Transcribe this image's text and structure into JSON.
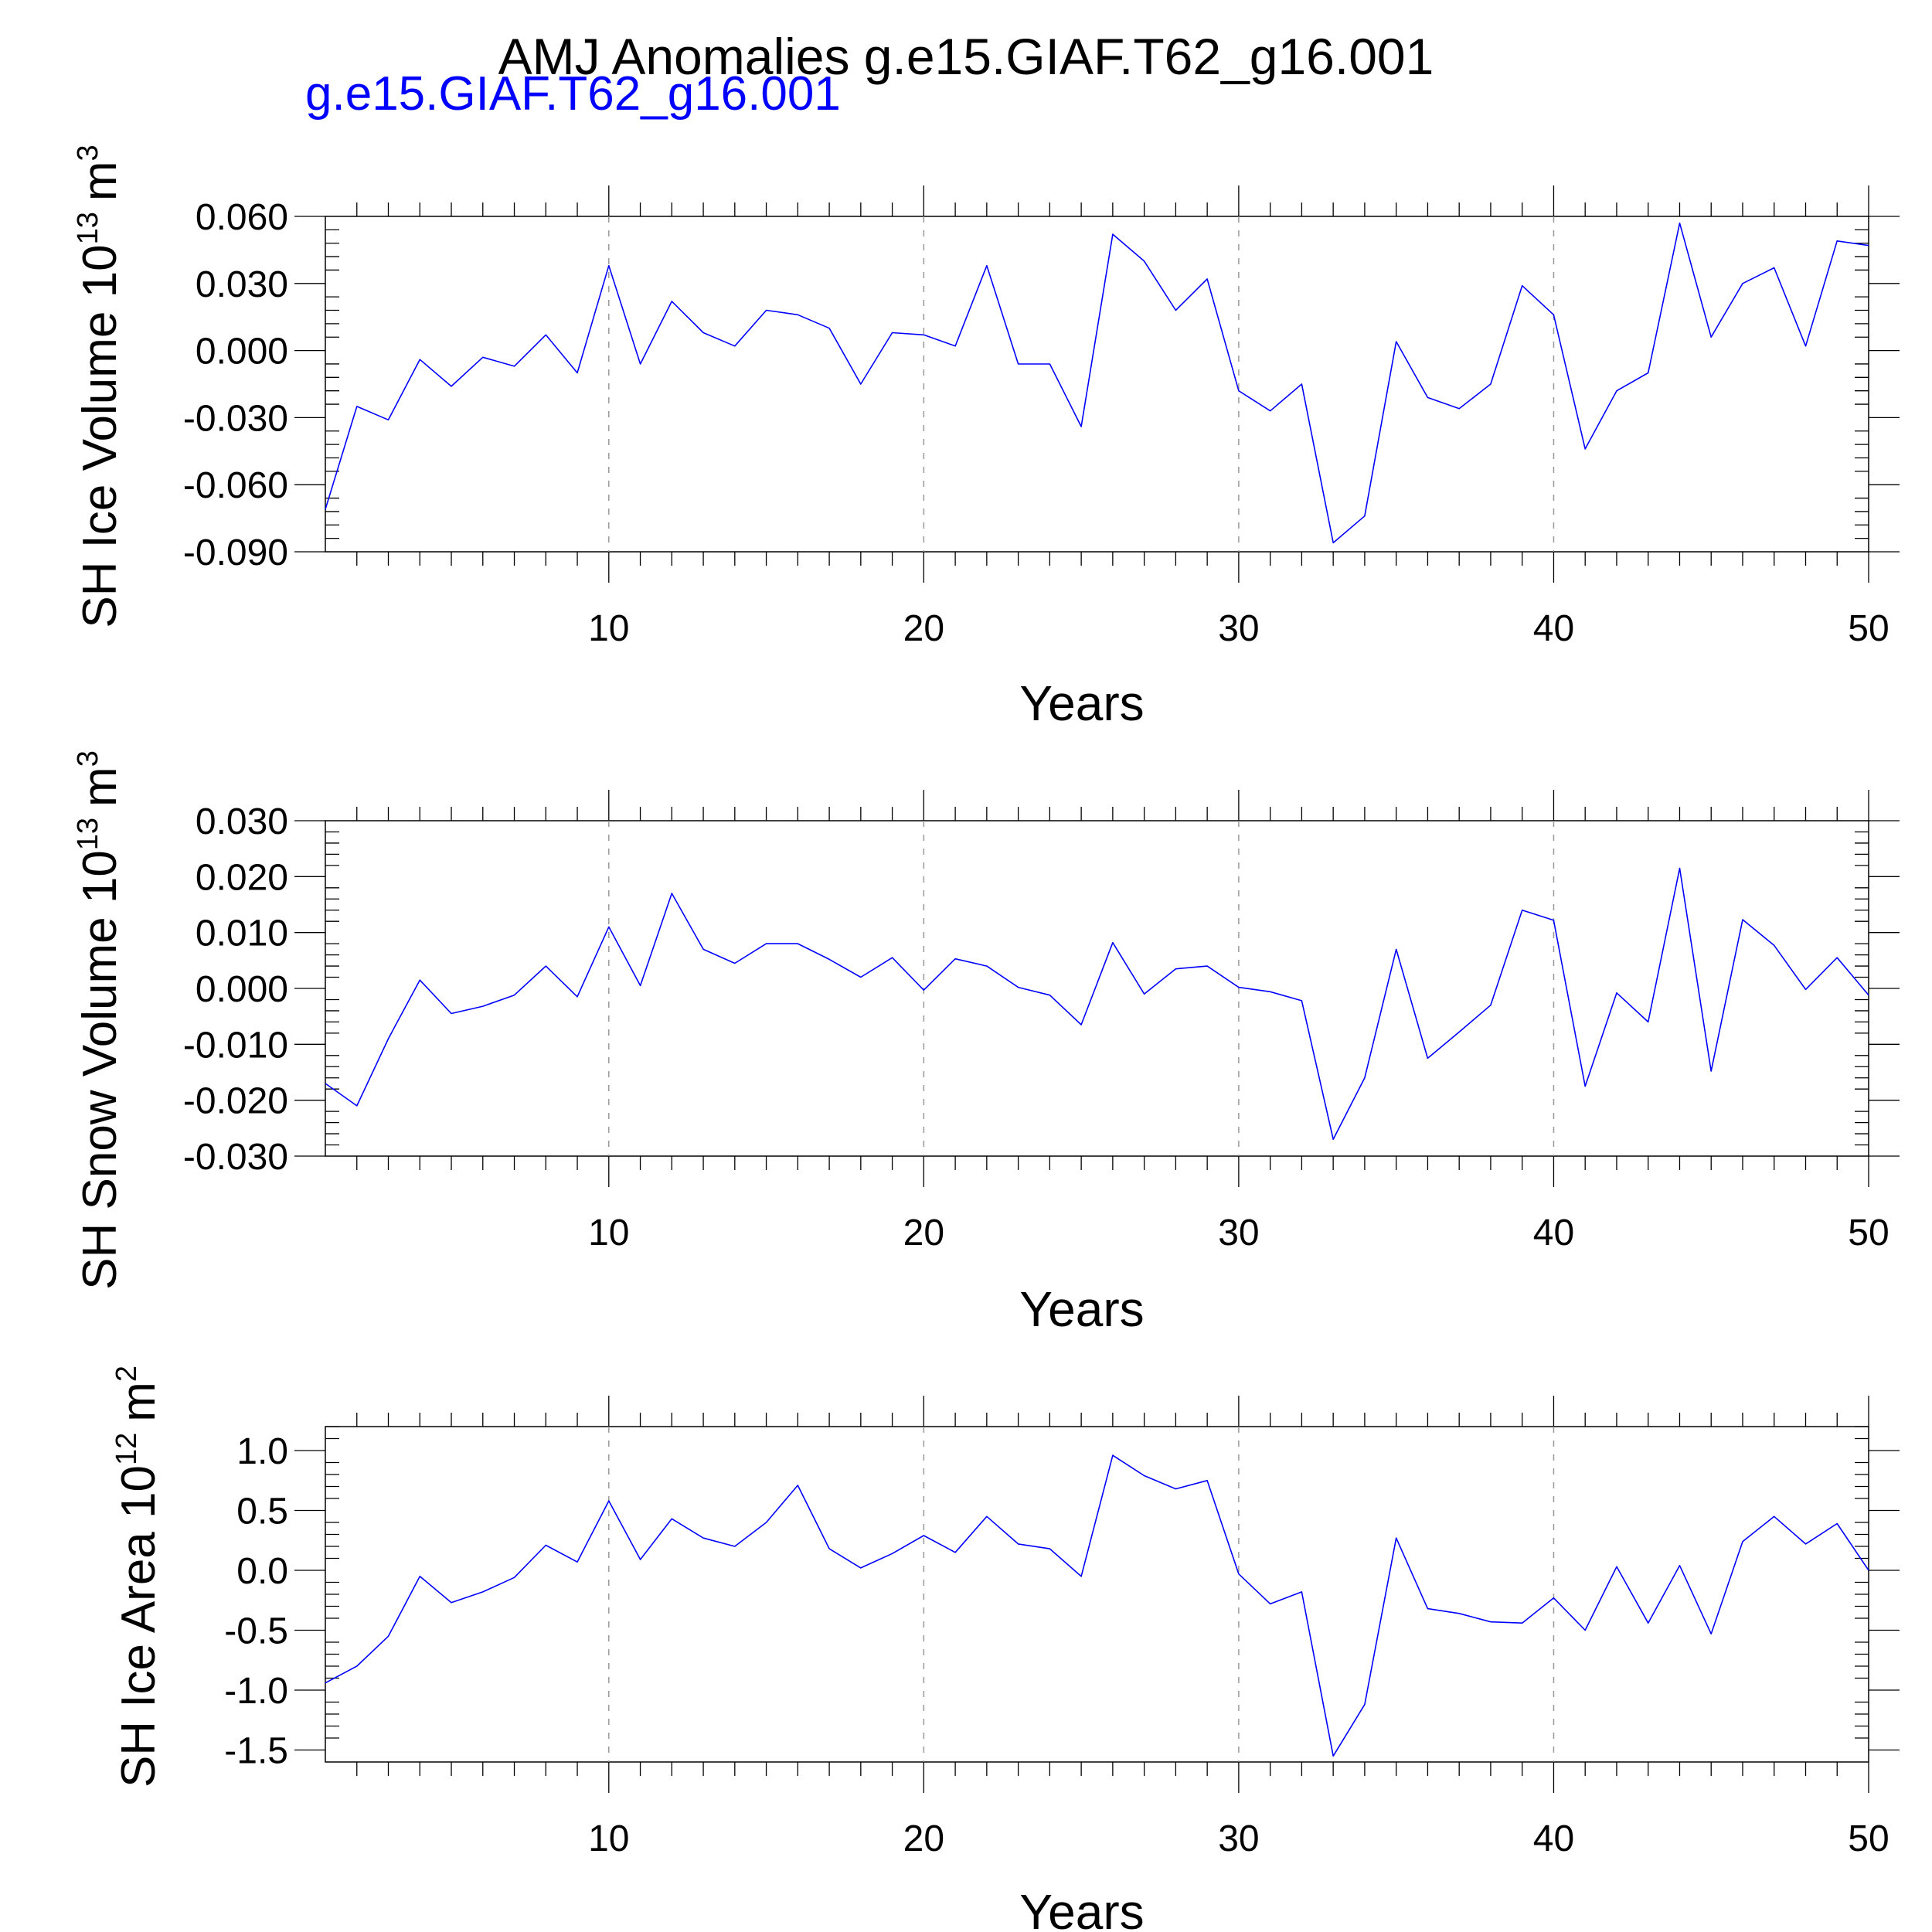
{
  "title": "AMJ Anomalies g.e15.GIAF.T62_g16.001",
  "subtitle": "g.e15.GIAF.T62_g16.001",
  "subtitle_color": "#0000ff",
  "chart_data": [
    {
      "type": "line",
      "xlabel": "Years",
      "ylabel": "SH Ice Volume 10",
      "ylabel_exponent": "13",
      "ylabel_unit": "m",
      "ylabel_unit_power": "3",
      "xlim": [
        1,
        50
      ],
      "ylim": [
        -0.09,
        0.06
      ],
      "x_major_ticks": [
        10,
        20,
        30,
        40,
        50
      ],
      "x_tick_labels": [
        "10",
        "20",
        "30",
        "40",
        "50"
      ],
      "y_major_ticks": [
        -0.09,
        -0.06,
        -0.03,
        0.0,
        0.03,
        0.06
      ],
      "y_tick_labels": [
        "-0.090",
        "-0.060",
        "-0.030",
        "0.000",
        "0.030",
        "0.060"
      ],
      "grid": "vertical dashed at major x ticks",
      "series": [
        {
          "color": "#0000ff",
          "x": [
            1,
            2,
            3,
            4,
            5,
            6,
            7,
            8,
            9,
            10,
            11,
            12,
            13,
            14,
            15,
            16,
            17,
            18,
            19,
            20,
            21,
            22,
            23,
            24,
            25,
            26,
            27,
            28,
            29,
            30,
            31,
            32,
            33,
            34,
            35,
            36,
            37,
            38,
            39,
            40,
            41,
            42,
            43,
            44,
            45,
            46,
            47,
            48,
            49,
            50
          ],
          "values": [
            -0.071,
            -0.025,
            -0.031,
            -0.004,
            -0.016,
            -0.003,
            -0.007,
            0.007,
            -0.01,
            0.038,
            -0.006,
            0.022,
            0.008,
            0.002,
            0.018,
            0.016,
            0.01,
            -0.015,
            0.008,
            0.007,
            0.002,
            0.038,
            -0.006,
            -0.006,
            -0.034,
            0.052,
            0.04,
            0.018,
            0.032,
            -0.018,
            -0.027,
            -0.015,
            -0.086,
            -0.074,
            0.004,
            -0.021,
            -0.026,
            -0.015,
            0.029,
            0.016,
            -0.044,
            -0.018,
            -0.01,
            0.057,
            0.006,
            0.03,
            0.037,
            0.002,
            0.049,
            0.047
          ]
        }
      ]
    },
    {
      "type": "line",
      "xlabel": "Years",
      "ylabel": "SH Snow Volume 10",
      "ylabel_exponent": "13",
      "ylabel_unit": "m",
      "ylabel_unit_power": "3",
      "xlim": [
        1,
        50
      ],
      "ylim": [
        -0.03,
        0.03
      ],
      "x_major_ticks": [
        10,
        20,
        30,
        40,
        50
      ],
      "x_tick_labels": [
        "10",
        "20",
        "30",
        "40",
        "50"
      ],
      "y_major_ticks": [
        -0.03,
        -0.02,
        -0.01,
        0.0,
        0.01,
        0.02,
        0.03
      ],
      "y_tick_labels": [
        "-0.030",
        "-0.020",
        "-0.010",
        "0.000",
        "0.010",
        "0.020",
        "0.030"
      ],
      "grid": "vertical dashed at major x ticks",
      "series": [
        {
          "color": "#0000ff",
          "x": [
            1,
            2,
            3,
            4,
            5,
            6,
            7,
            8,
            9,
            10,
            11,
            12,
            13,
            14,
            15,
            16,
            17,
            18,
            19,
            20,
            21,
            22,
            23,
            24,
            25,
            26,
            27,
            28,
            29,
            30,
            31,
            32,
            33,
            34,
            35,
            36,
            37,
            38,
            39,
            40,
            41,
            42,
            43,
            44,
            45,
            46,
            47,
            48,
            49,
            50
          ],
          "values": [
            -0.017,
            -0.021,
            -0.009,
            0.0015,
            -0.0045,
            -0.0032,
            -0.0012,
            0.004,
            -0.0015,
            0.011,
            0.0005,
            0.017,
            0.007,
            0.0045,
            0.008,
            0.008,
            0.0052,
            0.002,
            0.0055,
            -0.0003,
            0.0053,
            0.004,
            0.0002,
            -0.0012,
            -0.0065,
            0.0082,
            -0.001,
            0.0035,
            0.004,
            0.0002,
            -0.0006,
            -0.0022,
            -0.027,
            -0.016,
            0.007,
            -0.0125,
            -0.0078,
            -0.003,
            0.014,
            0.0122,
            -0.0175,
            -0.0008,
            -0.006,
            0.0215,
            -0.0148,
            0.0123,
            0.0077,
            -0.0002,
            0.0055,
            -0.0012
          ]
        }
      ]
    },
    {
      "type": "line",
      "xlabel": "Years",
      "ylabel": "SH Ice Area 10",
      "ylabel_exponent": "12",
      "ylabel_unit": "m",
      "ylabel_unit_power": "2",
      "xlim": [
        1,
        50
      ],
      "ylim": [
        -1.6,
        1.2
      ],
      "x_major_ticks": [
        10,
        20,
        30,
        40,
        50
      ],
      "x_tick_labels": [
        "10",
        "20",
        "30",
        "40",
        "50"
      ],
      "y_major_ticks": [
        -1.5,
        -1.0,
        -0.5,
        0.0,
        0.5,
        1.0
      ],
      "y_tick_labels": [
        "-1.5",
        "-1.0",
        "-0.5",
        "0.0",
        "0.5",
        "1.0"
      ],
      "grid": "vertical dashed at major x ticks",
      "series": [
        {
          "color": "#0000ff",
          "x": [
            1,
            2,
            3,
            4,
            5,
            6,
            7,
            8,
            9,
            10,
            11,
            12,
            13,
            14,
            15,
            16,
            17,
            18,
            19,
            20,
            21,
            22,
            23,
            24,
            25,
            26,
            27,
            28,
            29,
            30,
            31,
            32,
            33,
            34,
            35,
            36,
            37,
            38,
            39,
            40,
            41,
            42,
            43,
            44,
            45,
            46,
            47,
            48,
            49,
            50
          ],
          "values": [
            -0.94,
            -0.8,
            -0.55,
            -0.05,
            -0.27,
            -0.18,
            -0.06,
            0.21,
            0.07,
            0.58,
            0.09,
            0.43,
            0.27,
            0.2,
            0.4,
            0.71,
            0.18,
            0.02,
            0.14,
            0.29,
            0.15,
            0.45,
            0.22,
            0.18,
            -0.05,
            0.96,
            0.79,
            0.68,
            0.75,
            -0.03,
            -0.28,
            -0.18,
            -1.55,
            -1.12,
            0.27,
            -0.32,
            -0.36,
            -0.43,
            -0.44,
            -0.23,
            -0.5,
            0.03,
            -0.44,
            0.04,
            -0.53,
            0.24,
            0.45,
            0.22,
            0.39,
            0.0
          ]
        }
      ]
    }
  ]
}
